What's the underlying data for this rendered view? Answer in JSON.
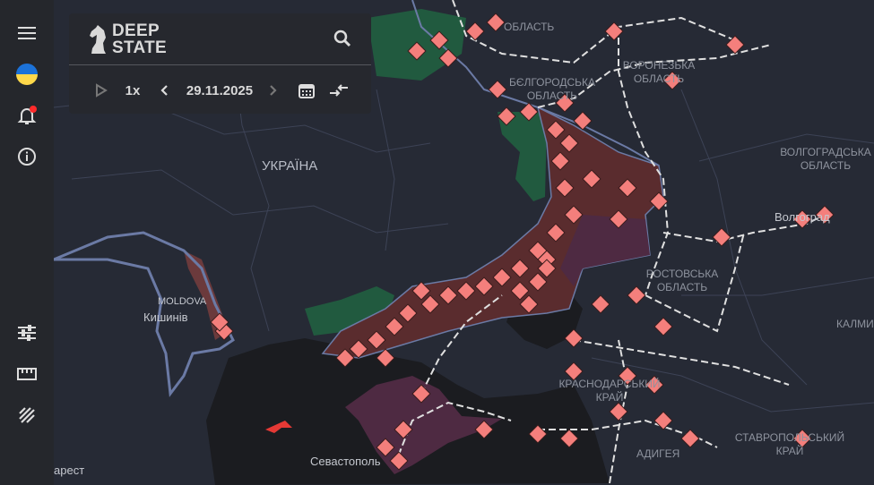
{
  "app": {
    "logo_line1": "DEEP",
    "logo_line2": "STATE"
  },
  "sidebar": {
    "items": [
      {
        "name": "menu",
        "icon": "hamburger-icon"
      },
      {
        "name": "language",
        "icon": "ukraine-flag-icon"
      },
      {
        "name": "notifications",
        "icon": "bell-icon",
        "has_badge": true
      },
      {
        "name": "info",
        "icon": "info-icon"
      },
      {
        "name": "filters",
        "icon": "sliders-icon"
      },
      {
        "name": "measure",
        "icon": "ruler-icon"
      },
      {
        "name": "draw",
        "icon": "draw-icon"
      }
    ]
  },
  "timeline": {
    "speed": "1x",
    "date": "29.11.2025"
  },
  "colors": {
    "occupied": "#5a2c2e",
    "crimea": "#4e2a42",
    "liberated": "#215a3f",
    "marker": "#f47f7c",
    "border": "#6b7aa5",
    "badge": "#ff2b2b"
  },
  "map_labels": {
    "ukraine": "УКРАЇНА",
    "moldova": "MOLDOVA",
    "chisinau": "Кишинів",
    "bucharest": "арест",
    "sevastopol": "Севастополь",
    "kursk_tail": "ОБЛАСТЬ",
    "belgorod": "БЄЛГОРОДСЬКА ОБЛАСТЬ",
    "voronezh": "ВОРОНЕЗЬКА ОБЛАСТЬ",
    "volgograd_obl": "ВОЛГОГРАДСЬКА ОБЛАСТЬ",
    "volgograd": "Волгоград",
    "rostov": "РОСТОВСЬКА ОБЛАСТЬ",
    "krasnodar": "КРАСНОДАРСЬКИЙ КРАЙ",
    "adygea": "АДИГЕЯ",
    "stavropol": "СТАВРОПОЛЬСЬКИЙ КРАЙ",
    "kalmykia": "КАЛМИ"
  }
}
